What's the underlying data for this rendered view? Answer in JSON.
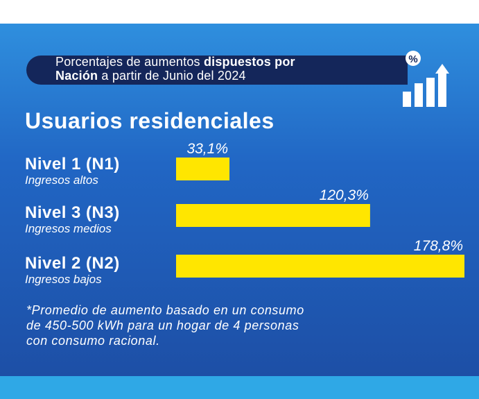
{
  "banner": {
    "line1_normal": "Porcentajes de aumentos ",
    "line1_bold": "dispuestos por",
    "line2_bold": "Nación",
    "line2_normal": " a partir de Junio del 2024",
    "icon": "percent-bar-chart-icon",
    "percent_symbol": "%"
  },
  "colors": {
    "bar": "#ffe600",
    "banner_bg": "#14265a",
    "text": "#ffffff"
  },
  "chart_data": {
    "type": "bar",
    "orientation": "horizontal",
    "title": "Usuarios residenciales",
    "categories": [
      "Nivel 1 (N1)",
      "Nivel 3 (N3)",
      "Nivel 2 (N2)"
    ],
    "subcategories": [
      "Ingresos altos",
      "Ingresos medios",
      "Ingresos bajos"
    ],
    "values": [
      33.1,
      120.3,
      178.8
    ],
    "value_labels": [
      "33,1%",
      "120,3%",
      "178,8%"
    ],
    "unit": "%",
    "xlim": [
      0,
      178.8
    ]
  },
  "footnote": {
    "line1": "*Promedio de aumento basado en un consumo",
    "line2": "de 450-500 kWh para un hogar de 4 personas",
    "line3": "con consumo racional."
  }
}
